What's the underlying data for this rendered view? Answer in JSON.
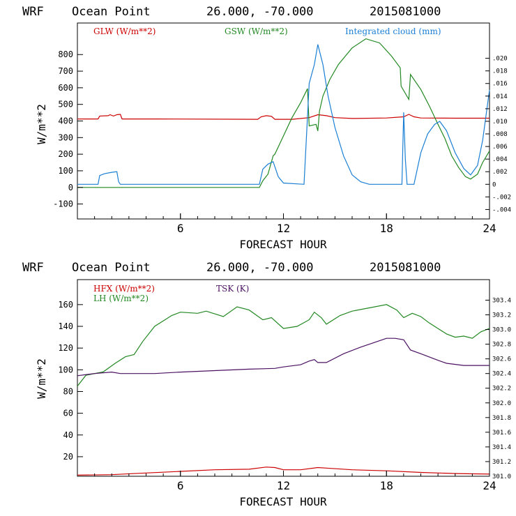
{
  "chart_data": [
    {
      "type": "line",
      "header": [
        "WRF",
        "Ocean Point",
        "26.000, -70.000",
        "2015081000"
      ],
      "xlabel": "FORECAST HOUR",
      "ylabel": "W/m**2",
      "xlim": [
        0,
        24
      ],
      "xticks": [
        "6",
        "12",
        "18",
        "24"
      ],
      "ylim": [
        -190,
        990
      ],
      "yticks": [
        "-100",
        "0",
        "100",
        "200",
        "300",
        "400",
        "500",
        "600",
        "700",
        "800"
      ],
      "y2lim": [
        -0.0055,
        0.0256
      ],
      "y2ticks": [
        "-.004",
        "-.002",
        "0",
        ".002",
        ".004",
        ".006",
        ".008",
        ".010",
        ".012",
        ".014",
        ".016",
        ".018",
        ".020"
      ],
      "series": [
        {
          "name": "GLW (W/m**2)",
          "color": "#cc0000",
          "axis": "left",
          "points": [
            [
              0,
              412
            ],
            [
              1.2,
              412
            ],
            [
              1.3,
              430
            ],
            [
              1.8,
              432
            ],
            [
              1.9,
              438
            ],
            [
              2.1,
              430
            ],
            [
              2.3,
              438
            ],
            [
              2.5,
              440
            ],
            [
              2.6,
              412
            ],
            [
              4.5,
              412
            ],
            [
              10.5,
              410
            ],
            [
              10.7,
              425
            ],
            [
              11.0,
              432
            ],
            [
              11.3,
              428
            ],
            [
              11.5,
              410
            ],
            [
              12.5,
              410
            ],
            [
              13.5,
              420
            ],
            [
              14.0,
              438
            ],
            [
              14.5,
              432
            ],
            [
              15.0,
              420
            ],
            [
              16,
              415
            ],
            [
              18,
              418
            ],
            [
              19.0,
              425
            ],
            [
              19.3,
              440
            ],
            [
              19.6,
              425
            ],
            [
              20,
              418
            ],
            [
              22,
              417
            ],
            [
              24,
              417
            ]
          ]
        },
        {
          "name": "GSW (W/m**2)",
          "color": "#228822",
          "axis": "left",
          "points": [
            [
              0,
              0
            ],
            [
              10.6,
              0
            ],
            [
              10.8,
              40
            ],
            [
              11.1,
              80
            ],
            [
              11.4,
              190
            ],
            [
              11.5,
              200
            ],
            [
              12.0,
              310
            ],
            [
              12.5,
              420
            ],
            [
              13.0,
              510
            ],
            [
              13.4,
              595
            ],
            [
              13.5,
              370
            ],
            [
              13.9,
              380
            ],
            [
              14.0,
              340
            ],
            [
              14.1,
              460
            ],
            [
              14.3,
              550
            ],
            [
              14.7,
              650
            ],
            [
              15.2,
              740
            ],
            [
              16.0,
              840
            ],
            [
              16.8,
              895
            ],
            [
              17.6,
              870
            ],
            [
              18.3,
              790
            ],
            [
              18.8,
              720
            ],
            [
              18.85,
              610
            ],
            [
              19.3,
              530
            ],
            [
              19.4,
              680
            ],
            [
              20.0,
              590
            ],
            [
              20.5,
              490
            ],
            [
              21.0,
              380
            ],
            [
              21.4,
              295
            ],
            [
              21.8,
              190
            ],
            [
              22.2,
              120
            ],
            [
              22.6,
              65
            ],
            [
              22.9,
              50
            ],
            [
              23.3,
              80
            ],
            [
              23.6,
              150
            ],
            [
              24,
              220
            ]
          ]
        },
        {
          "name": "Integrated cloud (mm)",
          "color": "#1a7fd4",
          "axis": "right",
          "points": [
            [
              0,
              0
            ],
            [
              1.2,
              0
            ],
            [
              1.3,
              0.0014
            ],
            [
              1.6,
              0.0017
            ],
            [
              2.0,
              0.0019
            ],
            [
              2.3,
              0.002
            ],
            [
              2.4,
              0.0004
            ],
            [
              2.5,
              0
            ],
            [
              10.6,
              0
            ],
            [
              10.8,
              0.0024
            ],
            [
              11.1,
              0.0032
            ],
            [
              11.4,
              0.0036
            ],
            [
              11.7,
              0.0012
            ],
            [
              12.0,
              0.0002
            ],
            [
              13.2,
              0
            ],
            [
              13.5,
              0.016
            ],
            [
              13.8,
              0.019
            ],
            [
              14.0,
              0.0222
            ],
            [
              14.3,
              0.019
            ],
            [
              14.6,
              0.014
            ],
            [
              15.0,
              0.009
            ],
            [
              15.5,
              0.0045
            ],
            [
              16.0,
              0.0015
            ],
            [
              16.5,
              0.0004
            ],
            [
              17.0,
              0
            ],
            [
              18.9,
              0
            ],
            [
              19.0,
              0.0114
            ],
            [
              19.1,
              0.004
            ],
            [
              19.2,
              0
            ],
            [
              19.6,
              0
            ],
            [
              20.0,
              0.005
            ],
            [
              20.4,
              0.008
            ],
            [
              20.8,
              0.0095
            ],
            [
              21.1,
              0.01
            ],
            [
              21.5,
              0.0085
            ],
            [
              22.0,
              0.005
            ],
            [
              22.5,
              0.0025
            ],
            [
              22.9,
              0.0015
            ],
            [
              23.3,
              0.003
            ],
            [
              23.6,
              0.007
            ],
            [
              24,
              0.015
            ]
          ]
        }
      ]
    },
    {
      "type": "line",
      "header": [
        "WRF",
        "Ocean Point",
        "26.000, -70.000",
        "2015081000"
      ],
      "xlabel": "FORECAST HOUR",
      "ylabel": "W/m**2",
      "xlim": [
        0,
        24
      ],
      "xticks": [
        "6",
        "12",
        "18",
        "24"
      ],
      "ylim": [
        2,
        183
      ],
      "yticks": [
        "20",
        "40",
        "60",
        "80",
        "100",
        "120",
        "140",
        "160"
      ],
      "y2lim": [
        301.0,
        303.68
      ],
      "y2ticks": [
        "301.0",
        "301.2",
        "301.4",
        "301.6",
        "301.8",
        "302.0",
        "302.2",
        "302.4",
        "302.6",
        "302.8",
        "303.0",
        "303.2",
        "303.4"
      ],
      "series": [
        {
          "name": "HFX (W/m**2)",
          "color": "#cc0000",
          "axis": "left",
          "points": [
            [
              0,
              3
            ],
            [
              2,
              3.5
            ],
            [
              4,
              5
            ],
            [
              6,
              6.5
            ],
            [
              8,
              8
            ],
            [
              10,
              8.5
            ],
            [
              11,
              10.5
            ],
            [
              11.5,
              10
            ],
            [
              12,
              8
            ],
            [
              13,
              8
            ],
            [
              14,
              10
            ],
            [
              14.5,
              9.5
            ],
            [
              16,
              8
            ],
            [
              18,
              7
            ],
            [
              20,
              5.5
            ],
            [
              22,
              4.5
            ],
            [
              24,
              4
            ]
          ]
        },
        {
          "name": "LH (W/m**2)",
          "color": "#228822",
          "axis": "left",
          "points": [
            [
              0,
              85
            ],
            [
              0.5,
              95
            ],
            [
              1.5,
              98
            ],
            [
              2.2,
              106
            ],
            [
              2.8,
              112
            ],
            [
              3.3,
              114
            ],
            [
              3.8,
              126
            ],
            [
              4.5,
              140
            ],
            [
              5.5,
              150
            ],
            [
              6.0,
              153
            ],
            [
              7.0,
              152
            ],
            [
              7.5,
              154
            ],
            [
              8.5,
              149
            ],
            [
              9.3,
              158
            ],
            [
              10.0,
              155
            ],
            [
              10.8,
              146
            ],
            [
              11.3,
              148
            ],
            [
              12.0,
              138
            ],
            [
              12.8,
              140
            ],
            [
              13.5,
              146
            ],
            [
              13.8,
              153
            ],
            [
              14.2,
              148
            ],
            [
              14.5,
              142
            ],
            [
              15.3,
              150
            ],
            [
              16.0,
              154
            ],
            [
              17.0,
              157
            ],
            [
              18.0,
              160
            ],
            [
              18.6,
              155
            ],
            [
              19.0,
              148
            ],
            [
              19.5,
              152
            ],
            [
              20.0,
              149
            ],
            [
              20.5,
              143
            ],
            [
              21.0,
              138
            ],
            [
              21.5,
              133
            ],
            [
              22.0,
              130
            ],
            [
              22.5,
              131
            ],
            [
              23.0,
              129
            ],
            [
              23.5,
              135
            ],
            [
              24,
              138
            ]
          ]
        },
        {
          "name": "TSK (K)",
          "color": "#4a1060",
          "axis": "right",
          "points": [
            [
              0,
              302.37
            ],
            [
              1.0,
              302.4
            ],
            [
              2.0,
              302.42
            ],
            [
              2.5,
              302.4
            ],
            [
              4.5,
              302.4
            ],
            [
              6,
              302.42
            ],
            [
              8,
              302.44
            ],
            [
              10,
              302.46
            ],
            [
              11.5,
              302.47
            ],
            [
              12,
              302.49
            ],
            [
              13.0,
              302.52
            ],
            [
              13.5,
              302.57
            ],
            [
              13.8,
              302.59
            ],
            [
              14.0,
              302.55
            ],
            [
              14.5,
              302.55
            ],
            [
              15.5,
              302.67
            ],
            [
              16.5,
              302.76
            ],
            [
              17.5,
              302.84
            ],
            [
              18.0,
              302.88
            ],
            [
              18.5,
              302.88
            ],
            [
              19.0,
              302.86
            ],
            [
              19.4,
              302.72
            ],
            [
              20.0,
              302.67
            ],
            [
              21.0,
              302.58
            ],
            [
              21.5,
              302.54
            ],
            [
              22.5,
              302.51
            ],
            [
              24,
              302.51
            ]
          ]
        }
      ]
    }
  ]
}
